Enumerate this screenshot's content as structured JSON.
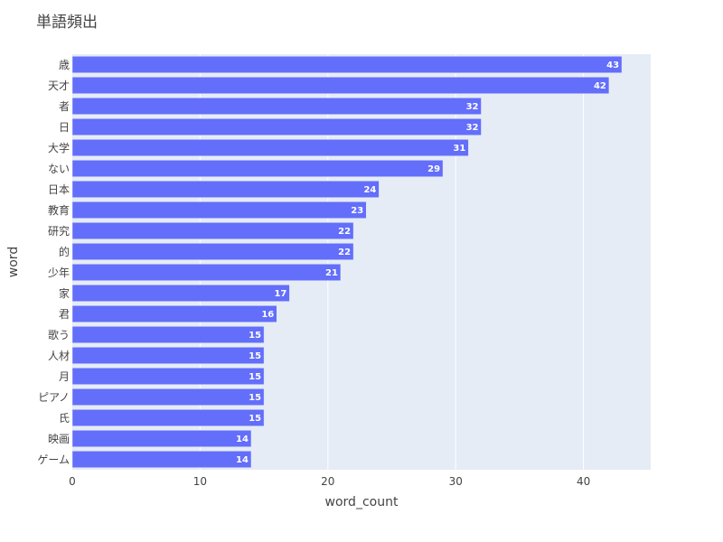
{
  "chart_data": {
    "type": "bar",
    "orientation": "horizontal",
    "title": "単語頻出",
    "xlabel": "word_count",
    "ylabel": "word",
    "xlim": [
      0,
      45.26
    ],
    "x_ticks": [
      0,
      10,
      20,
      30,
      40
    ],
    "grid": true,
    "categories": [
      "歳",
      "天才",
      "者",
      "日",
      "大学",
      "ない",
      "日本",
      "教育",
      "研究",
      "的",
      "少年",
      "家",
      "君",
      "歌う",
      "人材",
      "月",
      "ピアノ",
      "氏",
      "映画",
      "ゲーム"
    ],
    "values": [
      43,
      42,
      32,
      32,
      31,
      29,
      24,
      23,
      22,
      22,
      21,
      17,
      16,
      15,
      15,
      15,
      15,
      15,
      14,
      14
    ],
    "colors": {
      "bar": "#636efa",
      "plot_background": "#e5ecf6",
      "grid": "#ffffff",
      "text": "#444444"
    }
  }
}
